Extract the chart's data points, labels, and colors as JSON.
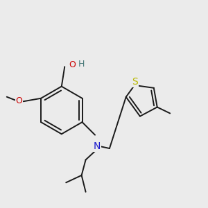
{
  "background_color": "#ebebeb",
  "bond_color": "#1a1a1a",
  "atom_colors": {
    "O": "#cc0000",
    "N": "#1a1acc",
    "S": "#b8b800",
    "H": "#4a7a7a",
    "C": "#1a1a1a"
  },
  "figsize": [
    3.0,
    3.0
  ],
  "dpi": 100
}
